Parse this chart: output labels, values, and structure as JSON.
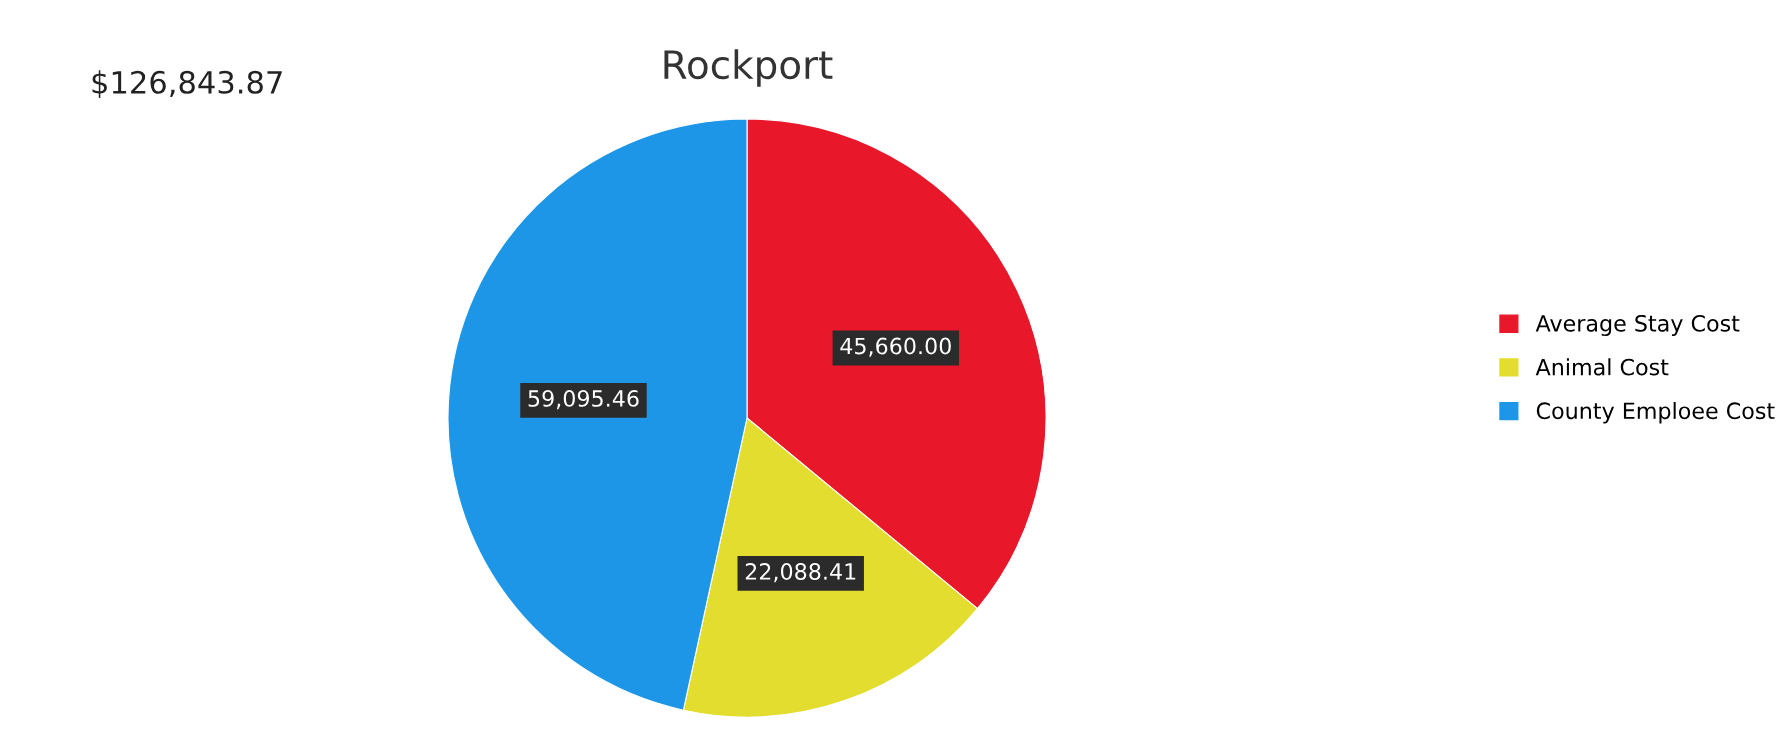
{
  "chart_data": {
    "type": "pie",
    "title": "Rockport",
    "annotations": [
      "$126,843.87"
    ],
    "categories": [
      "Average Stay Cost",
      "Animal Cost",
      "County Emploee Cost"
    ],
    "values": [
      45660.0,
      22088.41,
      59095.46
    ],
    "value_labels": [
      "45,660.00",
      "22,088.41",
      "59,095.46"
    ],
    "colors": [
      "#e8182a",
      "#e2dd2e",
      "#1e96e8"
    ],
    "legend": "right"
  }
}
